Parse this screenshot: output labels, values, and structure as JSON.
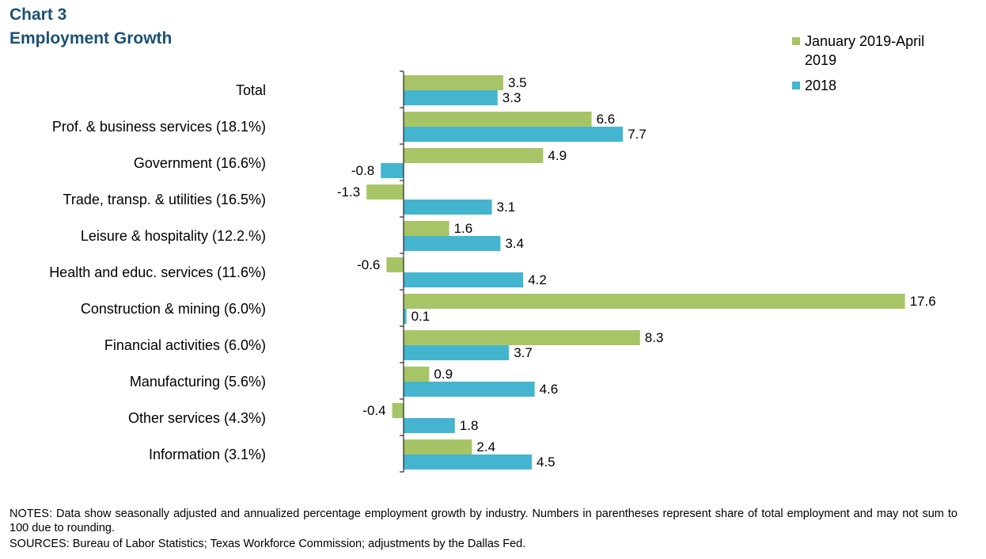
{
  "header": {
    "chart_number": "Chart 3",
    "chart_title": "Employment  Growth"
  },
  "colors": {
    "series1": "#a7c566",
    "series2": "#45b5cf",
    "title": "#1b5174",
    "axis": "#000000"
  },
  "chart_data": {
    "type": "bar",
    "orientation": "horizontal",
    "title": "Employment  Growth",
    "xlabel": "",
    "ylabel": "",
    "categories": [
      "Total",
      "Prof. & business services (18.1%)",
      "Government (16.6%)",
      "Trade, transp. & utilities (16.5%)",
      "Leisure & hospitality (12.2.%)",
      "Health and educ. services (11.6%)",
      "Construction & mining (6.0%)",
      "Financial activities (6.0%)",
      "Manufacturing (5.6%)",
      "Other services (4.3%)",
      "Information (3.1%)"
    ],
    "series": [
      {
        "name": "January 2019-April 2019",
        "values": [
          3.5,
          6.6,
          4.9,
          -1.3,
          1.6,
          -0.6,
          17.6,
          8.3,
          0.9,
          -0.4,
          2.4
        ]
      },
      {
        "name": "2018",
        "values": [
          3.3,
          7.7,
          -0.8,
          3.1,
          3.4,
          4.2,
          0.1,
          3.7,
          4.6,
          1.8,
          4.5
        ]
      }
    ],
    "legend_position": "top-right",
    "grid": false
  },
  "legend": {
    "items": [
      {
        "line1": "January 2019-April",
        "line2": "2019"
      },
      {
        "line1": "2018",
        "line2": ""
      }
    ]
  },
  "footer": {
    "notes": "NOTES: Data show seasonally adjusted and annualized percentage employment growth by industry. Numbers in parentheses represent share of total employment and may not sum to 100 due to rounding.",
    "sources": "SOURCES: Bureau of Labor Statistics; Texas Workforce Commission; adjustments by the Dallas Fed."
  }
}
